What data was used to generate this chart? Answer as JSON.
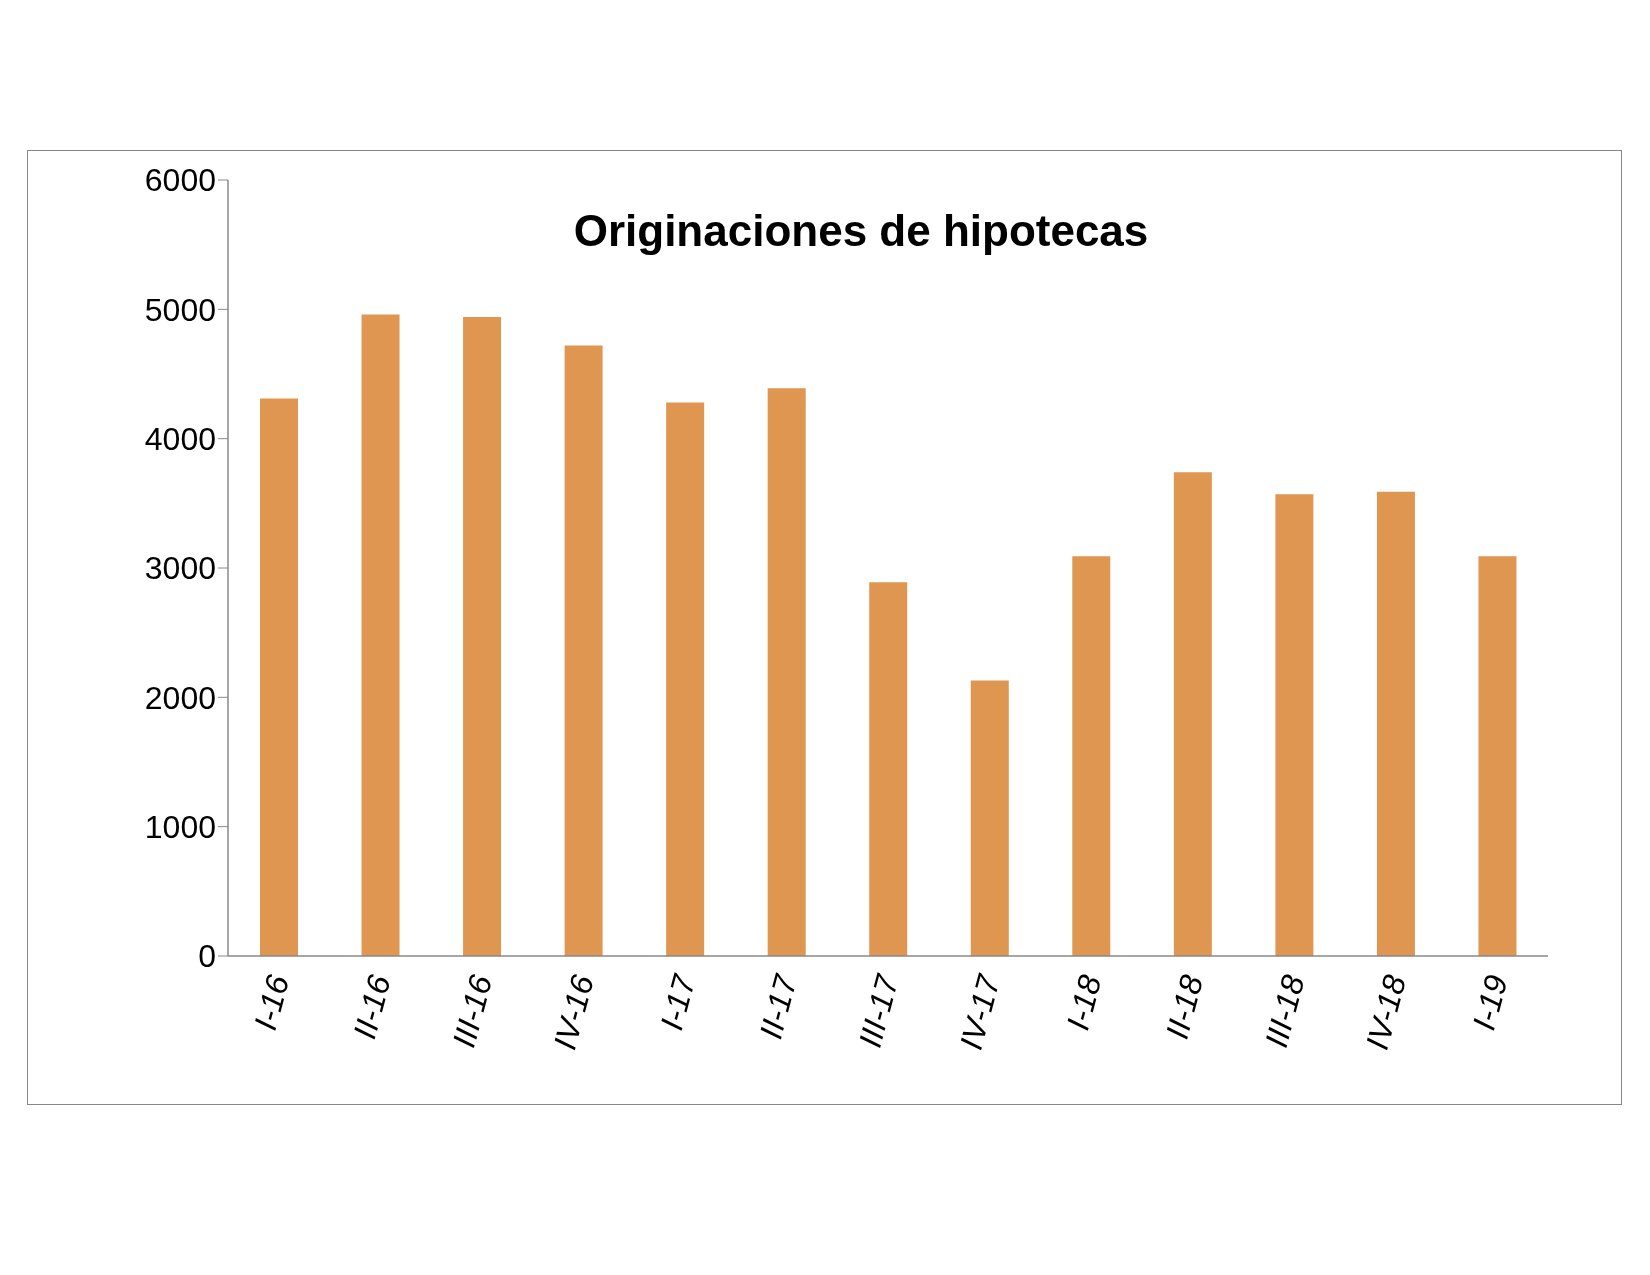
{
  "chart_data": {
    "type": "bar",
    "title": "Originaciones de hipotecas",
    "categories": [
      "I-16",
      "II-16",
      "III-16",
      "IV-16",
      "I-17",
      "II-17",
      "III-17",
      "IV-17",
      "I-18",
      "II-18",
      "III-18",
      "IV-18",
      "I-19"
    ],
    "values": [
      4310,
      4960,
      4940,
      4720,
      4280,
      4390,
      2890,
      2130,
      3090,
      3740,
      3570,
      3590,
      3090
    ],
    "color": "#de9650",
    "ylim": [
      0,
      6000
    ],
    "yticks": [
      0,
      1000,
      2000,
      3000,
      4000,
      5000,
      6000
    ],
    "grid": false,
    "legend": false
  }
}
